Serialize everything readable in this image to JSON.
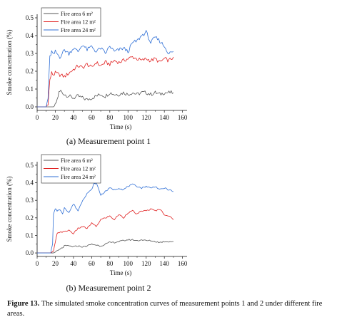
{
  "caption": {
    "label": "Figure 13.",
    "text": " The simulated smoke concentration curves of measurement points 1 and 2 under different fire areas."
  },
  "chart_data": [
    {
      "type": "line",
      "caption": "(a) Measurement point 1",
      "xlabel": "Time (s)",
      "ylabel": "Smoke concentration (%)",
      "xlim": [
        0,
        165
      ],
      "ylim": [
        -0.02,
        0.52
      ],
      "xticks": [
        0,
        20,
        40,
        60,
        80,
        100,
        120,
        140,
        160
      ],
      "yticks": [
        0.0,
        0.1,
        0.2,
        0.3,
        0.4,
        0.5
      ],
      "ytick_labels": [
        "0.0",
        "0.1",
        "0.2",
        "0.3",
        "0.4",
        "0.5"
      ],
      "legend_position": "top-left",
      "series": [
        {
          "name": "Fire area 6 m²",
          "color": "#555555",
          "x": [
            0,
            10,
            14,
            18,
            20,
            22,
            24,
            26,
            30,
            35,
            40,
            45,
            50,
            55,
            60,
            65,
            70,
            75,
            80,
            85,
            90,
            95,
            100,
            105,
            110,
            115,
            120,
            125,
            130,
            135,
            140,
            145,
            150
          ],
          "y": [
            0,
            0,
            0,
            0,
            0.01,
            0.04,
            0.08,
            0.09,
            0.07,
            0.06,
            0.05,
            0.06,
            0.05,
            0.04,
            0.05,
            0.06,
            0.07,
            0.06,
            0.08,
            0.07,
            0.07,
            0.08,
            0.07,
            0.08,
            0.07,
            0.08,
            0.08,
            0.07,
            0.08,
            0.07,
            0.08,
            0.08,
            0.08
          ]
        },
        {
          "name": "Fire area 12 m²",
          "color": "#e02020",
          "x": [
            0,
            10,
            12,
            14,
            16,
            18,
            20,
            25,
            30,
            35,
            40,
            45,
            50,
            55,
            60,
            65,
            70,
            75,
            80,
            85,
            90,
            95,
            100,
            105,
            110,
            115,
            120,
            125,
            130,
            135,
            140,
            145,
            150
          ],
          "y": [
            0,
            0,
            0.02,
            0.15,
            0.19,
            0.18,
            0.19,
            0.18,
            0.17,
            0.19,
            0.21,
            0.23,
            0.22,
            0.24,
            0.22,
            0.25,
            0.23,
            0.25,
            0.24,
            0.26,
            0.25,
            0.26,
            0.27,
            0.28,
            0.27,
            0.26,
            0.27,
            0.26,
            0.27,
            0.25,
            0.27,
            0.26,
            0.28
          ]
        },
        {
          "name": "Fire area 24 m²",
          "color": "#2f6fd6",
          "x": [
            0,
            10,
            12,
            14,
            16,
            18,
            20,
            25,
            30,
            35,
            40,
            45,
            50,
            55,
            60,
            65,
            70,
            75,
            80,
            85,
            90,
            95,
            100,
            105,
            110,
            115,
            120,
            125,
            130,
            135,
            140,
            145,
            150
          ],
          "y": [
            0,
            0,
            0.05,
            0.28,
            0.31,
            0.29,
            0.31,
            0.28,
            0.32,
            0.3,
            0.33,
            0.31,
            0.35,
            0.32,
            0.34,
            0.31,
            0.33,
            0.3,
            0.34,
            0.31,
            0.32,
            0.33,
            0.31,
            0.36,
            0.37,
            0.4,
            0.42,
            0.36,
            0.39,
            0.37,
            0.34,
            0.3,
            0.31
          ]
        }
      ]
    },
    {
      "type": "line",
      "caption": "(b) Measurement point 2",
      "xlabel": "Time (s)",
      "ylabel": "Smoke concentration (%)",
      "xlim": [
        0,
        165
      ],
      "ylim": [
        -0.02,
        0.52
      ],
      "xticks": [
        0,
        20,
        40,
        60,
        80,
        100,
        120,
        140,
        160
      ],
      "yticks": [
        0.0,
        0.1,
        0.2,
        0.3,
        0.4,
        0.5
      ],
      "ytick_labels": [
        "0.0",
        "0.1",
        "0.2",
        "0.3",
        "0.4",
        "0.5"
      ],
      "legend_position": "top-left",
      "series": [
        {
          "name": "Fire area 6 m²",
          "color": "#555555",
          "x": [
            0,
            15,
            18,
            20,
            22,
            25,
            28,
            30,
            35,
            40,
            45,
            50,
            55,
            60,
            65,
            70,
            75,
            80,
            85,
            90,
            95,
            100,
            105,
            110,
            115,
            120,
            125,
            130,
            135,
            140,
            145,
            150
          ],
          "y": [
            0,
            0,
            0,
            0.005,
            0.01,
            0.02,
            0.03,
            0.04,
            0.04,
            0.035,
            0.04,
            0.035,
            0.04,
            0.05,
            0.045,
            0.04,
            0.05,
            0.06,
            0.06,
            0.065,
            0.07,
            0.075,
            0.075,
            0.07,
            0.075,
            0.07,
            0.07,
            0.065,
            0.06,
            0.065,
            0.065,
            0.065
          ]
        },
        {
          "name": "Fire area 12 m²",
          "color": "#e02020",
          "x": [
            0,
            15,
            18,
            20,
            22,
            25,
            30,
            35,
            40,
            45,
            50,
            55,
            60,
            65,
            70,
            75,
            80,
            85,
            90,
            95,
            100,
            105,
            110,
            115,
            120,
            125,
            130,
            135,
            140,
            145,
            150
          ],
          "y": [
            0,
            0,
            0.01,
            0.06,
            0.11,
            0.12,
            0.12,
            0.13,
            0.11,
            0.14,
            0.15,
            0.14,
            0.17,
            0.15,
            0.19,
            0.2,
            0.21,
            0.19,
            0.22,
            0.2,
            0.23,
            0.24,
            0.22,
            0.24,
            0.24,
            0.25,
            0.24,
            0.25,
            0.22,
            0.21,
            0.19
          ]
        },
        {
          "name": "Fire area 24 m²",
          "color": "#2f6fd6",
          "x": [
            0,
            15,
            17,
            18,
            20,
            22,
            25,
            28,
            30,
            35,
            40,
            45,
            50,
            55,
            60,
            62,
            65,
            68,
            70,
            75,
            80,
            85,
            90,
            95,
            100,
            105,
            110,
            115,
            120,
            125,
            130,
            135,
            140,
            145,
            150
          ],
          "y": [
            0,
            0,
            0.05,
            0.22,
            0.25,
            0.24,
            0.25,
            0.22,
            0.26,
            0.23,
            0.28,
            0.24,
            0.3,
            0.34,
            0.36,
            0.39,
            0.4,
            0.36,
            0.33,
            0.35,
            0.37,
            0.36,
            0.37,
            0.36,
            0.38,
            0.39,
            0.38,
            0.37,
            0.38,
            0.37,
            0.38,
            0.36,
            0.37,
            0.36,
            0.35
          ]
        }
      ]
    }
  ]
}
